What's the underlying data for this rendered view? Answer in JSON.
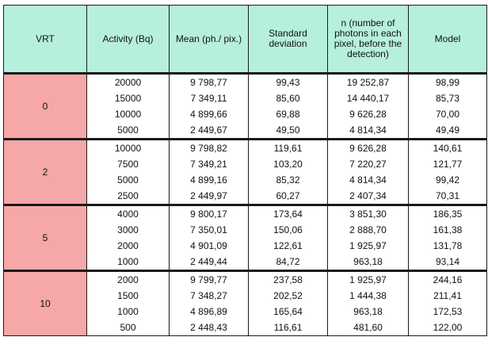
{
  "headers": {
    "vrt": "VRT",
    "activity": "Activity (Bq)",
    "mean": "Mean (ph./ pix.)",
    "std": "Standard deviation",
    "n": "n (number of photons in each pixel, before the detection)",
    "model": "Model"
  },
  "groups": [
    {
      "vrt": "0",
      "rows": [
        {
          "activity": "20000",
          "mean": "9 798,77",
          "std": "99,43",
          "n": "19 252,87",
          "model": "98,99"
        },
        {
          "activity": "15000",
          "mean": "7 349,11",
          "std": "85,60",
          "n": "14 440,17",
          "model": "85,73"
        },
        {
          "activity": "10000",
          "mean": "4 899,66",
          "std": "69,88",
          "n": "9 626,28",
          "model": "70,00"
        },
        {
          "activity": "5000",
          "mean": "2 449,67",
          "std": "49,50",
          "n": "4 814,34",
          "model": "49,49"
        }
      ]
    },
    {
      "vrt": "2",
      "rows": [
        {
          "activity": "10000",
          "mean": "9 798,82",
          "std": "119,61",
          "n": "9 626,28",
          "model": "140,61"
        },
        {
          "activity": "7500",
          "mean": "7 349,21",
          "std": "103,20",
          "n": "7 220,27",
          "model": "121,77"
        },
        {
          "activity": "5000",
          "mean": "4 899,16",
          "std": "85,32",
          "n": "4 814,34",
          "model": "99,42"
        },
        {
          "activity": "2500",
          "mean": "2 449,97",
          "std": "60,27",
          "n": "2 407,34",
          "model": "70,31"
        }
      ]
    },
    {
      "vrt": "5",
      "rows": [
        {
          "activity": "4000",
          "mean": "9 800,17",
          "std": "173,64",
          "n": "3 851,30",
          "model": "186,35"
        },
        {
          "activity": "3000",
          "mean": "7 350,01",
          "std": "150,06",
          "n": "2 888,70",
          "model": "161,38"
        },
        {
          "activity": "2000",
          "mean": "4 901,09",
          "std": "122,61",
          "n": "1 925,97",
          "model": "131,78"
        },
        {
          "activity": "1000",
          "mean": "2 449,44",
          "std": "84,72",
          "n": "963,18",
          "model": "93,14"
        }
      ]
    },
    {
      "vrt": "10",
      "rows": [
        {
          "activity": "2000",
          "mean": "9 799,77",
          "std": "237,58",
          "n": "1 925,97",
          "model": "244,16"
        },
        {
          "activity": "1500",
          "mean": "7 348,27",
          "std": "202,52",
          "n": "1 444,38",
          "model": "211,41"
        },
        {
          "activity": "1000",
          "mean": "4 896,89",
          "std": "165,64",
          "n": "963,18",
          "model": "172,53"
        },
        {
          "activity": "500",
          "mean": "2 448,43",
          "std": "116,61",
          "n": "481,60",
          "model": "122,00"
        }
      ]
    }
  ]
}
